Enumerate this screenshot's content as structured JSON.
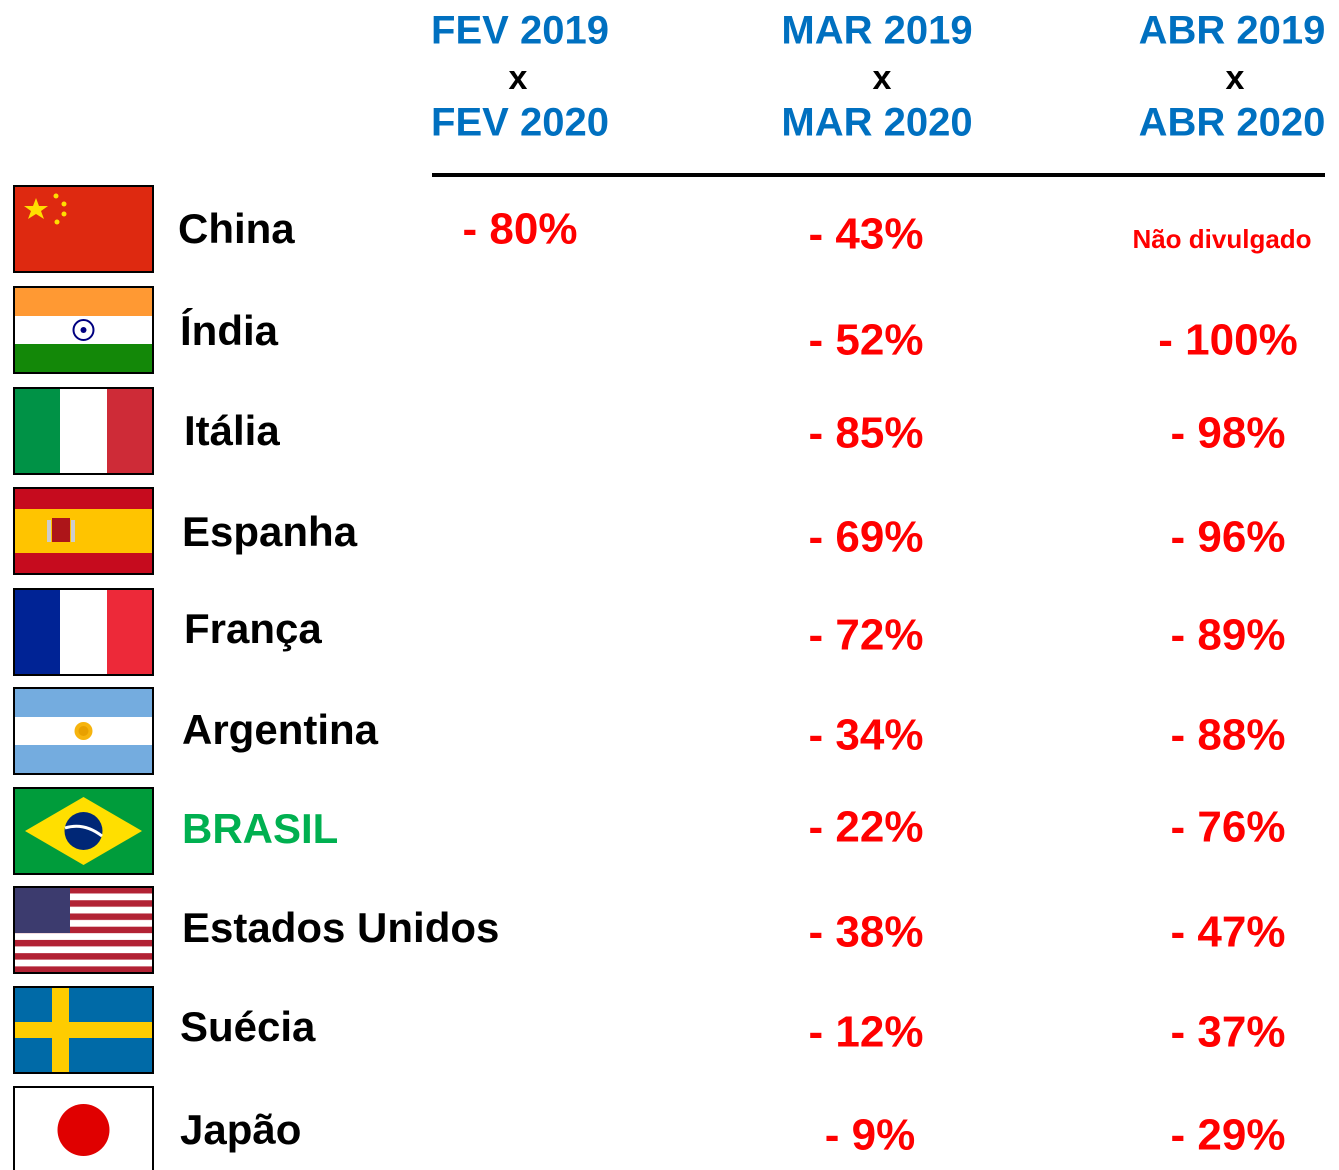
{
  "header": {
    "columns": [
      {
        "top": "FEV 2019",
        "sep": "x",
        "bottom": "FEV 2020"
      },
      {
        "top": "MAR 2019",
        "sep": "x",
        "bottom": "MAR 2020"
      },
      {
        "top": "ABR 2019",
        "sep": "x",
        "bottom": "ABR 2020"
      }
    ]
  },
  "rows": [
    {
      "country": "China",
      "values": [
        "- 80%",
        "- 43%",
        "Não divulgado"
      ]
    },
    {
      "country": "Índia",
      "values": [
        "- 52%",
        "- 100%"
      ]
    },
    {
      "country": "Itália",
      "values": [
        "- 85%",
        "- 98%"
      ]
    },
    {
      "country": "Espanha",
      "values": [
        "- 69%",
        "- 96%"
      ]
    },
    {
      "country": "França",
      "values": [
        "- 72%",
        "- 89%"
      ]
    },
    {
      "country": "Argentina",
      "values": [
        "- 34%",
        "- 88%"
      ]
    },
    {
      "country": "BRASIL",
      "values": [
        "- 22%",
        "- 76%"
      ]
    },
    {
      "country": "Estados Unidos",
      "values": [
        "- 38%",
        "- 47%"
      ]
    },
    {
      "country": "Suécia",
      "values": [
        "- 12%",
        "- 37%"
      ]
    },
    {
      "country": "Japão",
      "values": [
        "- 9%",
        "- 29%"
      ]
    }
  ]
}
